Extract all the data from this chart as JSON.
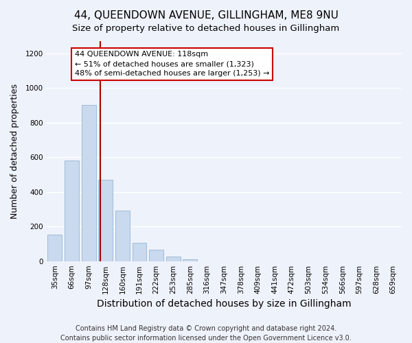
{
  "title": "44, QUEENDOWN AVENUE, GILLINGHAM, ME8 9NU",
  "subtitle": "Size of property relative to detached houses in Gillingham",
  "xlabel": "Distribution of detached houses by size in Gillingham",
  "ylabel": "Number of detached properties",
  "bar_labels": [
    "35sqm",
    "66sqm",
    "97sqm",
    "128sqm",
    "160sqm",
    "191sqm",
    "222sqm",
    "253sqm",
    "285sqm",
    "316sqm",
    "347sqm",
    "378sqm",
    "409sqm",
    "441sqm",
    "472sqm",
    "503sqm",
    "534sqm",
    "566sqm",
    "597sqm",
    "628sqm",
    "659sqm"
  ],
  "bar_values": [
    155,
    580,
    900,
    470,
    290,
    105,
    65,
    28,
    12,
    0,
    0,
    0,
    0,
    0,
    0,
    0,
    0,
    0,
    0,
    0,
    0
  ],
  "bar_color": "#c9d9ee",
  "bar_edge_color": "#a0bcd8",
  "ylim": [
    0,
    1270
  ],
  "yticks": [
    0,
    200,
    400,
    600,
    800,
    1000,
    1200
  ],
  "annotation_title": "44 QUEENDOWN AVENUE: 118sqm",
  "annotation_line1": "← 51% of detached houses are smaller (1,323)",
  "annotation_line2": "48% of semi-detached houses are larger (1,253) →",
  "vline_color": "#aa0000",
  "vline_pos": 2.7,
  "footer1": "Contains HM Land Registry data © Crown copyright and database right 2024.",
  "footer2": "Contains public sector information licensed under the Open Government Licence v3.0.",
  "background_color": "#eef2fa",
  "grid_color": "#ffffff",
  "title_fontsize": 11,
  "subtitle_fontsize": 9.5,
  "xlabel_fontsize": 10,
  "ylabel_fontsize": 9,
  "tick_fontsize": 7.5,
  "footer_fontsize": 7
}
